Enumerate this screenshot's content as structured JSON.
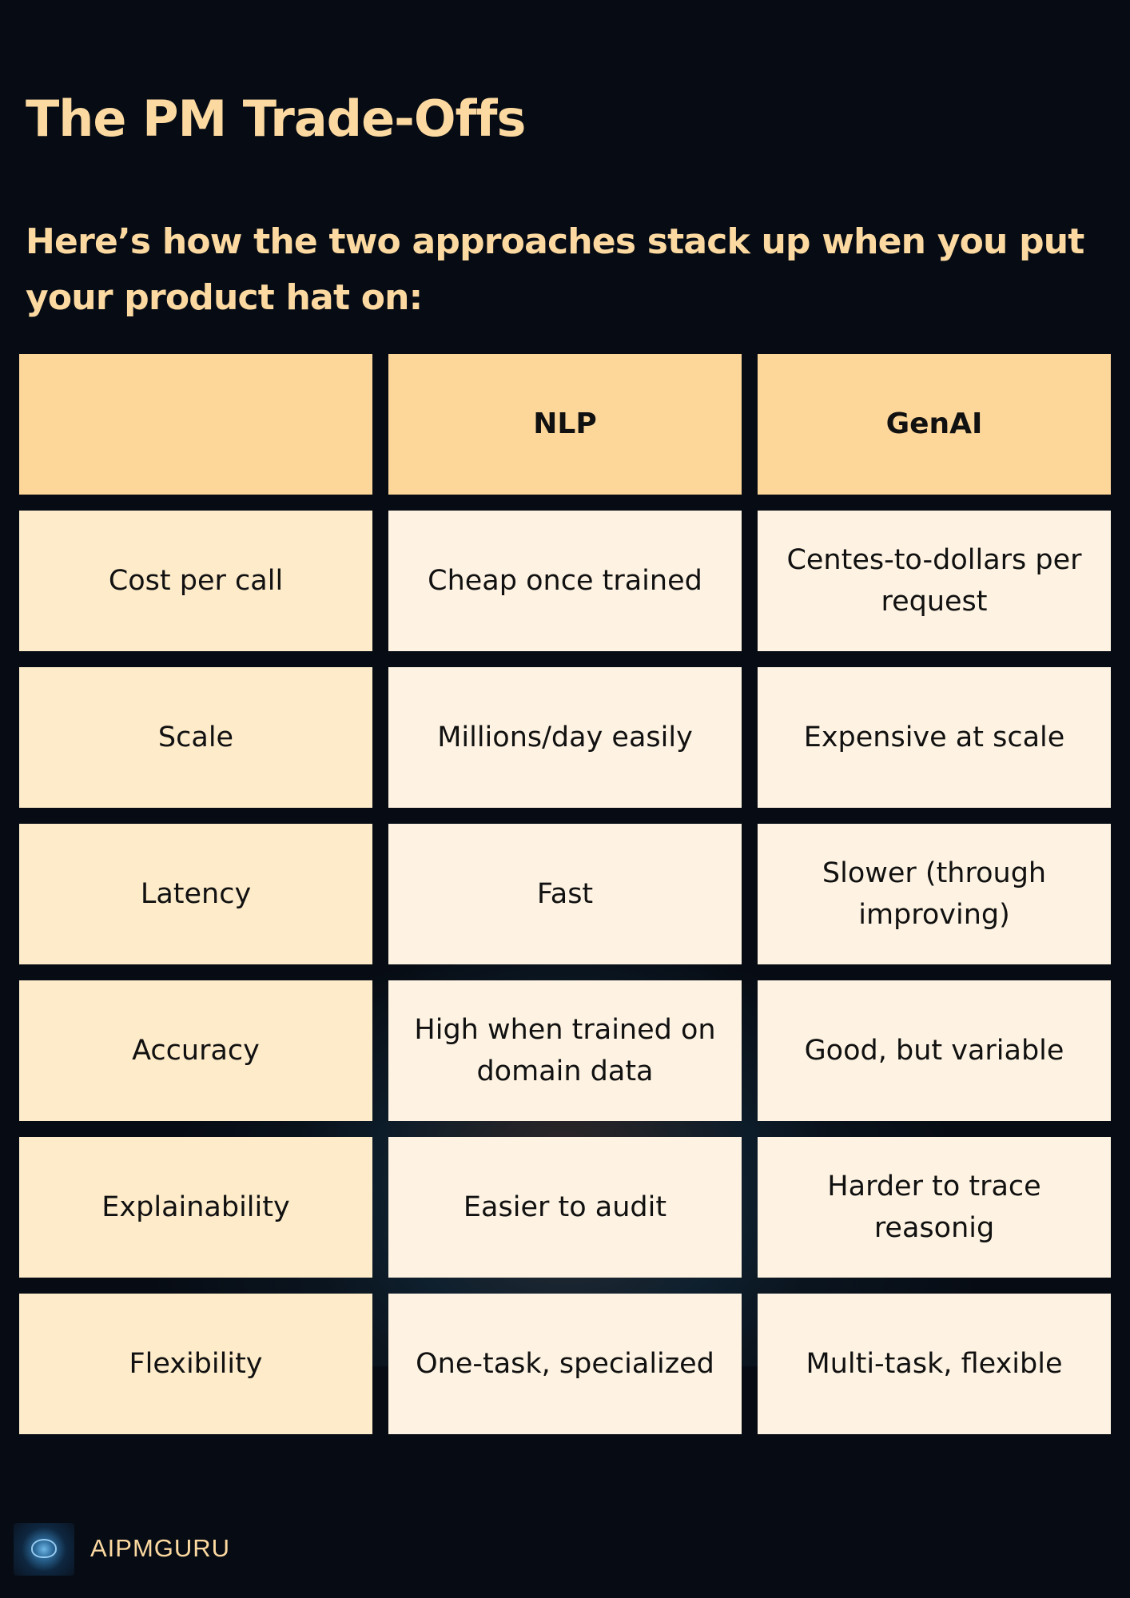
{
  "title": "The PM Trade-Offs",
  "subtitle": "Here’s how the two approaches stack up when you put your product hat on:",
  "table": {
    "headers": [
      "",
      "NLP",
      "GenAI"
    ],
    "rows": [
      [
        "Cost per call",
        "Cheap once trained",
        "Centes-to-dollars per request"
      ],
      [
        "Scale",
        "Millions/day easily",
        "Expensive at scale"
      ],
      [
        "Latency",
        "Fast",
        "Slower (through improving)"
      ],
      [
        "Accuracy",
        "High when trained on domain data",
        "Good, but variable"
      ],
      [
        "Explainability",
        "Easier to audit",
        "Harder to trace reasonig"
      ],
      [
        "Flexibility",
        "One-task, specialized",
        "Multi-task, flexible"
      ]
    ]
  },
  "footer": {
    "logo_icon": "brain-logo-icon",
    "brand": "AIPMGURU"
  },
  "colors": {
    "background": "#070c14",
    "accent_text": "#fcd9a0",
    "header_fill": "#fdd69a",
    "label_fill": "#fdebca",
    "value_fill": "#fef3e2"
  }
}
